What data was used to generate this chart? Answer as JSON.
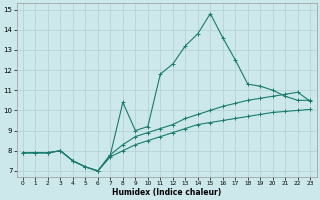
{
  "xlabel": "Humidex (Indice chaleur)",
  "xlim": [
    -0.5,
    23.5
  ],
  "ylim": [
    6.7,
    15.3
  ],
  "xticks": [
    0,
    1,
    2,
    3,
    4,
    5,
    6,
    7,
    8,
    9,
    10,
    11,
    12,
    13,
    14,
    15,
    16,
    17,
    18,
    19,
    20,
    21,
    22,
    23
  ],
  "yticks": [
    7,
    8,
    9,
    10,
    11,
    12,
    13,
    14,
    15
  ],
  "bg_color": "#cce8ea",
  "grid_color": "#b0d0d2",
  "line_color": "#1a7a6e",
  "line1_x": [
    0,
    1,
    2,
    3,
    4,
    5,
    6,
    7,
    8,
    9,
    10,
    11,
    12,
    13,
    14,
    15,
    16,
    17,
    18,
    19,
    20,
    21,
    22,
    23
  ],
  "line1_y": [
    7.9,
    7.9,
    7.9,
    8.0,
    7.5,
    7.2,
    7.0,
    7.8,
    10.4,
    9.0,
    9.2,
    11.8,
    12.3,
    13.2,
    13.8,
    14.8,
    13.6,
    12.5,
    11.3,
    11.2,
    11.0,
    10.7,
    10.5,
    10.5
  ],
  "line2_x": [
    0,
    1,
    2,
    3,
    4,
    5,
    6,
    7,
    8,
    9,
    10,
    11,
    12,
    13,
    14,
    15,
    16,
    17,
    18,
    19,
    20,
    21,
    22,
    23
  ],
  "line2_y": [
    7.9,
    7.9,
    7.9,
    8.0,
    7.5,
    7.2,
    7.0,
    7.8,
    8.3,
    8.7,
    8.9,
    9.1,
    9.3,
    9.6,
    9.8,
    10.0,
    10.2,
    10.35,
    10.5,
    10.6,
    10.7,
    10.8,
    10.9,
    10.45
  ],
  "line3_x": [
    0,
    1,
    2,
    3,
    4,
    5,
    6,
    7,
    8,
    9,
    10,
    11,
    12,
    13,
    14,
    15,
    16,
    17,
    18,
    19,
    20,
    21,
    22,
    23
  ],
  "line3_y": [
    7.9,
    7.9,
    7.9,
    8.0,
    7.5,
    7.2,
    7.0,
    7.7,
    8.0,
    8.3,
    8.5,
    8.7,
    8.9,
    9.1,
    9.3,
    9.4,
    9.5,
    9.6,
    9.7,
    9.8,
    9.9,
    9.95,
    10.0,
    10.05
  ]
}
